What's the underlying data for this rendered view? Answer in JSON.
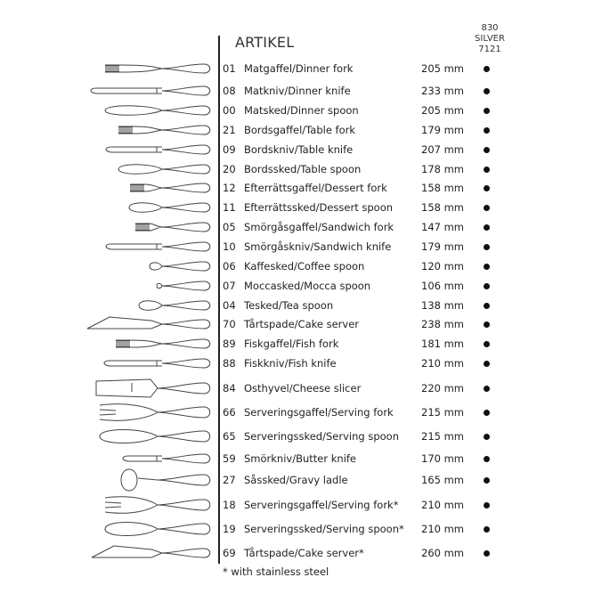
{
  "header": {
    "title": "ARTIKEL",
    "column": [
      "830",
      "SILVER",
      "7121"
    ]
  },
  "items": [
    {
      "no": "01",
      "name": "Matgaffel/Dinner fork",
      "length": "205 mm",
      "icon": "fork",
      "available": true
    },
    {
      "no": "08",
      "name": "Matkniv/Dinner knife",
      "length": "233 mm",
      "icon": "knife",
      "available": true
    },
    {
      "no": "00",
      "name": "Matsked/Dinner spoon",
      "length": "205 mm",
      "icon": "spoon",
      "available": true
    },
    {
      "no": "21",
      "name": "Bordsgaffel/Table fork",
      "length": "179 mm",
      "icon": "fork",
      "available": true
    },
    {
      "no": "09",
      "name": "Bordskniv/Table knife",
      "length": "207 mm",
      "icon": "knife",
      "available": true
    },
    {
      "no": "20",
      "name": "Bordssked/Table spoon",
      "length": "178 mm",
      "icon": "spoon",
      "available": true
    },
    {
      "no": "12",
      "name": "Efterrättsgaffel/Dessert fork",
      "length": "158 mm",
      "icon": "fork",
      "available": true
    },
    {
      "no": "11",
      "name": "Efterrättssked/Dessert spoon",
      "length": "158 mm",
      "icon": "spoon",
      "available": true
    },
    {
      "no": "05",
      "name": "Smörgåsgaffel/Sandwich fork",
      "length": "147 mm",
      "icon": "fork",
      "available": true
    },
    {
      "no": "10",
      "name": "Smörgåskniv/Sandwich knife",
      "length": "179 mm",
      "icon": "knife",
      "available": true
    },
    {
      "no": "06",
      "name": "Kaffesked/Coffee spoon",
      "length": "120 mm",
      "icon": "spoon",
      "available": true
    },
    {
      "no": "07",
      "name": "Moccasked/Mocca spoon",
      "length": "106 mm",
      "icon": "spoon",
      "available": true
    },
    {
      "no": "04",
      "name": "Tesked/Tea spoon",
      "length": "138 mm",
      "icon": "spoon",
      "available": true
    },
    {
      "no": "70",
      "name": "Tårtspade/Cake server",
      "length": "238 mm",
      "icon": "cake-server",
      "available": true
    },
    {
      "no": "89",
      "name": "Fiskgaffel/Fish fork",
      "length": "181 mm",
      "icon": "fork",
      "available": true
    },
    {
      "no": "88",
      "name": "Fiskkniv/Fish knife",
      "length": "210 mm",
      "icon": "fish-knife",
      "available": true
    },
    {
      "no": "84",
      "name": "Osthyvel/Cheese slicer",
      "length": "220 mm",
      "icon": "cheese-slicer",
      "available": true
    },
    {
      "no": "66",
      "name": "Serveringsgaffel/Serving fork",
      "length": "215 mm",
      "icon": "serving-fork",
      "available": true
    },
    {
      "no": "65",
      "name": "Serveringssked/Serving spoon",
      "length": "215 mm",
      "icon": "spoon",
      "available": true
    },
    {
      "no": "59",
      "name": "Smörkniv/Butter knife",
      "length": "170 mm",
      "icon": "knife",
      "available": true
    },
    {
      "no": "27",
      "name": "Såssked/Gravy ladle",
      "length": "165 mm",
      "icon": "ladle",
      "available": true
    },
    {
      "no": "18",
      "name": "Serveringsgaffel/Serving fork*",
      "length": "210 mm",
      "icon": "serving-fork",
      "available": true
    },
    {
      "no": "19",
      "name": "Serveringssked/Serving spoon*",
      "length": "210 mm",
      "icon": "spoon",
      "available": true
    },
    {
      "no": "69",
      "name": "Tårtspade/Cake server*",
      "length": "260 mm",
      "icon": "cake-server",
      "available": true
    }
  ],
  "footnote": "* with stainless steel"
}
